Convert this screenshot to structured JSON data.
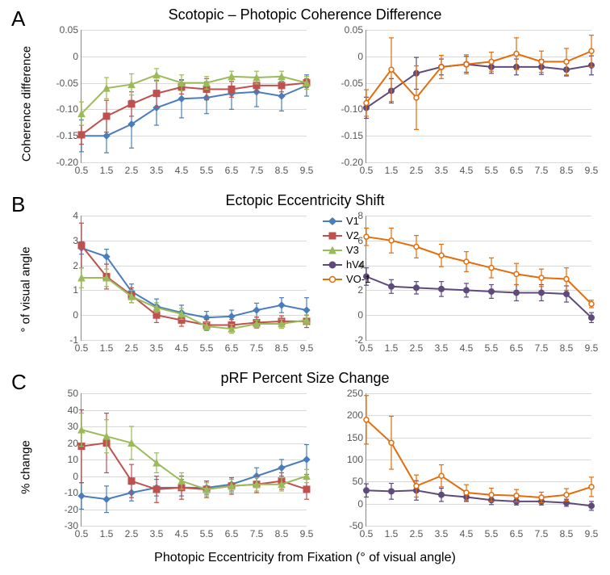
{
  "figure_width": 756,
  "figure_height": 712,
  "background_color": "#ffffff",
  "grid_color": "#d9d9d9",
  "axis_color": "#888888",
  "tick_font_size": 12,
  "title_font_size": 18,
  "panel_label_font_size": 26,
  "axis_label_font_size": 15,
  "x_axis_label": "Photopic Eccentricity from Fixation (° of visual angle)",
  "x_ticks": [
    0.5,
    1.5,
    2.5,
    3.5,
    4.5,
    5.5,
    6.5,
    7.5,
    8.5,
    9.5
  ],
  "series_colors": {
    "V1": "#4a7ebb",
    "V2": "#c0504d",
    "V3": "#9bbb59",
    "hV4": "#604a7b",
    "VO-1": "#e46c0a"
  },
  "series_markers": {
    "V1": "diamond",
    "V2": "square",
    "V3": "triangle",
    "hV4": "circle",
    "VO-1": "circle-open"
  },
  "legend": {
    "items": [
      "V1",
      "V2",
      "V3",
      "hV4",
      "VO-1"
    ]
  },
  "panels": {
    "A": {
      "label": "A",
      "title": "Scotopic – Photopic Coherence Difference",
      "y_label": "Coherence difference",
      "left": {
        "ylim": [
          -0.2,
          0.05
        ],
        "ytick_step": 0.05,
        "series": {
          "V1": {
            "y": [
              -0.15,
              -0.15,
              -0.128,
              -0.097,
              -0.08,
              -0.078,
              -0.07,
              -0.067,
              -0.075,
              -0.055
            ],
            "err": [
              0.03,
              0.032,
              0.045,
              0.033,
              0.036,
              0.03,
              0.03,
              0.028,
              0.028,
              0.02
            ]
          },
          "V2": {
            "y": [
              -0.148,
              -0.113,
              -0.09,
              -0.07,
              -0.058,
              -0.062,
              -0.062,
              -0.055,
              -0.055,
              -0.05
            ],
            "err": [
              0.018,
              0.03,
              0.023,
              0.025,
              0.013,
              0.02,
              0.015,
              0.012,
              0.012,
              0.008
            ]
          },
          "V3": {
            "y": [
              -0.108,
              -0.06,
              -0.053,
              -0.035,
              -0.05,
              -0.05,
              -0.038,
              -0.04,
              -0.038,
              -0.05
            ],
            "err": [
              0.022,
              0.02,
              0.02,
              0.012,
              0.015,
              0.012,
              0.01,
              0.012,
              0.01,
              0.012
            ]
          }
        }
      },
      "right": {
        "ylim": [
          -0.2,
          0.05
        ],
        "ytick_step": 0.05,
        "series": {
          "hV4": {
            "y": [
              -0.097,
              -0.065,
              -0.032,
              -0.02,
              -0.015,
              -0.02,
              -0.02,
              -0.02,
              -0.025,
              -0.017
            ],
            "err": [
              0.02,
              0.023,
              0.03,
              0.015,
              0.015,
              0.012,
              0.015,
              0.014,
              0.012,
              0.018
            ]
          },
          "VO-1": {
            "y": [
              -0.088,
              -0.025,
              -0.078,
              -0.02,
              -0.015,
              -0.01,
              0.005,
              -0.01,
              -0.01,
              0.01
            ],
            "err": [
              0.025,
              0.06,
              0.06,
              0.022,
              0.018,
              0.018,
              0.03,
              0.02,
              0.025,
              0.03
            ]
          }
        }
      }
    },
    "B": {
      "label": "B",
      "title": "Ectopic Eccentricity Shift",
      "y_label": "° of visual angle",
      "left": {
        "ylim": [
          -1,
          4
        ],
        "ytick_step": 1,
        "series": {
          "V1": {
            "y": [
              2.7,
              2.35,
              0.95,
              0.35,
              0.1,
              -0.1,
              -0.05,
              0.2,
              0.4,
              0.2
            ],
            "err": [
              0.25,
              0.3,
              0.3,
              0.3,
              0.3,
              0.25,
              0.25,
              0.28,
              0.3,
              0.5
            ]
          },
          "V2": {
            "y": [
              2.8,
              1.55,
              0.8,
              0.0,
              -0.2,
              -0.4,
              -0.4,
              -0.3,
              -0.25,
              -0.25
            ],
            "err": [
              0.9,
              0.5,
              0.3,
              0.3,
              0.25,
              0.22,
              0.22,
              0.22,
              0.22,
              0.25
            ]
          },
          "V3": {
            "y": [
              1.5,
              1.5,
              0.75,
              0.3,
              0.05,
              -0.45,
              -0.55,
              -0.35,
              -0.35,
              -0.2
            ],
            "err": [
              0.4,
              0.35,
              0.25,
              0.2,
              0.22,
              0.15,
              0.18,
              0.15,
              0.18,
              0.18
            ]
          }
        }
      },
      "right": {
        "ylim": [
          -2,
          8
        ],
        "ytick_step": 2,
        "series": {
          "hV4": {
            "y": [
              3.1,
              2.3,
              2.2,
              2.1,
              2.0,
              1.9,
              1.8,
              1.8,
              1.7,
              -0.2
            ],
            "err": [
              0.7,
              0.55,
              0.5,
              0.6,
              0.55,
              0.55,
              0.65,
              0.65,
              0.65,
              0.4
            ]
          },
          "VO-1": {
            "y": [
              6.3,
              6.0,
              5.5,
              4.8,
              4.3,
              3.8,
              3.3,
              3.0,
              2.9,
              0.9
            ],
            "err": [
              0.7,
              1.0,
              0.9,
              0.9,
              0.8,
              0.8,
              0.85,
              0.7,
              0.9,
              0.3
            ]
          }
        }
      }
    },
    "C": {
      "label": "C",
      "title": "pRF Percent Size Change",
      "y_label": "% change",
      "left": {
        "ylim": [
          -30,
          50
        ],
        "ytick_step": 10,
        "series": {
          "V1": {
            "y": [
              -12,
              -14,
              -10,
              -7,
              -7,
              -7,
              -5,
              0,
              5,
              10
            ],
            "err": [
              8,
              8,
              5,
              5,
              5,
              4,
              4,
              5,
              5,
              9
            ]
          },
          "V2": {
            "y": [
              18,
              20,
              -3,
              -8,
              -7,
              -8,
              -6,
              -5,
              -3,
              -8
            ],
            "err": [
              22,
              18,
              10,
              8,
              7,
              5,
              5,
              5,
              5,
              6
            ]
          },
          "V3": {
            "y": [
              28,
              24,
              20,
              8,
              -3,
              -8,
              -6,
              -5,
              -5,
              0
            ],
            "err": [
              10,
              10,
              10,
              6,
              5,
              4,
              4,
              4,
              4,
              4
            ]
          }
        }
      },
      "right": {
        "ylim": [
          -50,
          250
        ],
        "ytick_step": 50,
        "series": {
          "hV4": {
            "y": [
              30,
              28,
              30,
              20,
              15,
              8,
              5,
              5,
              2,
              -5
            ],
            "err": [
              15,
              18,
              22,
              15,
              10,
              10,
              8,
              8,
              8,
              10
            ]
          },
          "VO-1": {
            "y": [
              190,
              138,
              40,
              63,
              25,
              20,
              18,
              14,
              20,
              38
            ],
            "err": [
              55,
              60,
              25,
              25,
              18,
              15,
              14,
              12,
              14,
              22
            ]
          }
        }
      }
    }
  }
}
